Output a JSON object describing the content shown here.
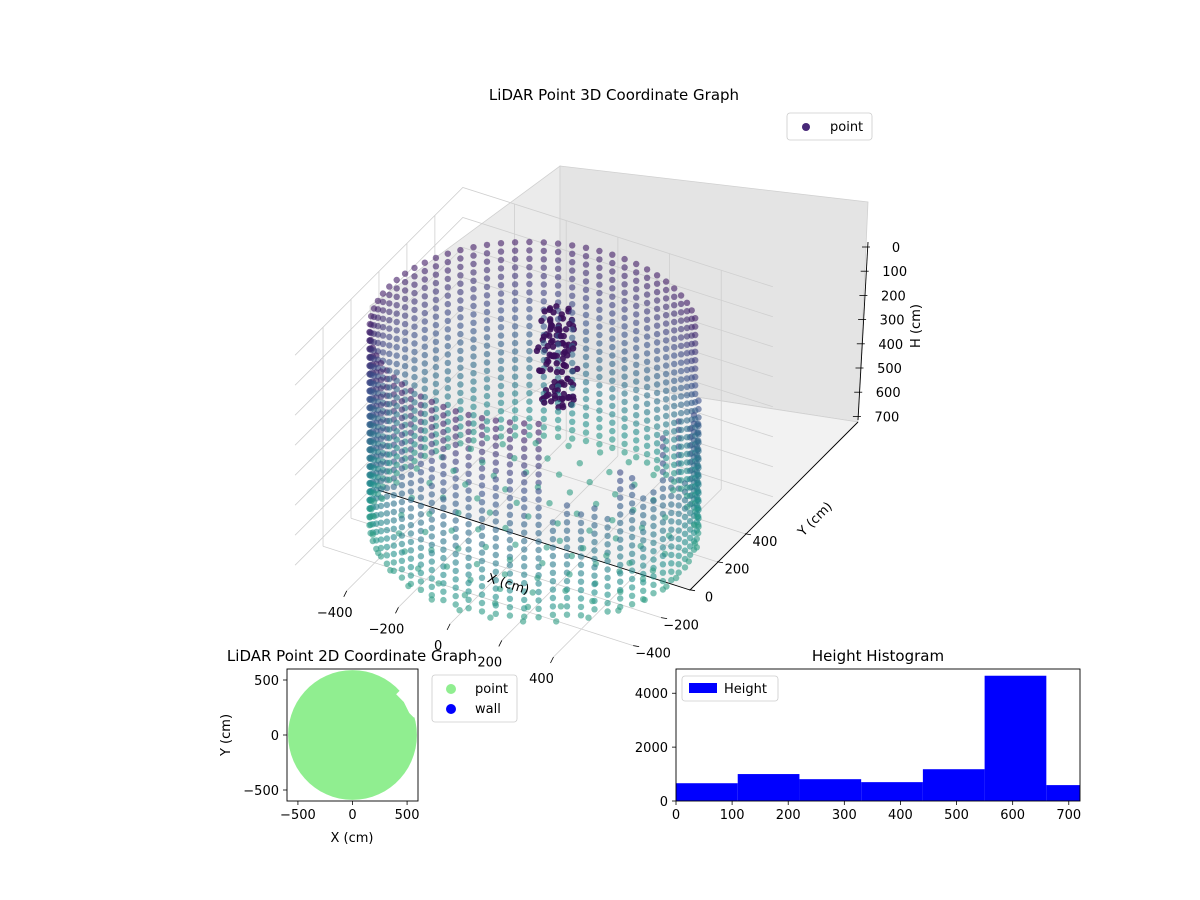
{
  "chart_data": [
    {
      "type": "scatter",
      "projection": "3d",
      "title": "LiDAR Point 3D Coordinate Graph",
      "xlabel": "X (cm)",
      "ylabel": "Y (cm)",
      "zlabel": "H (cm)",
      "xlim": [
        -600,
        600
      ],
      "ylim": [
        -600,
        600
      ],
      "zlim": [
        700,
        0
      ],
      "z_axis_inverted": true,
      "xticks": [
        "−400",
        "−200",
        "0",
        "200",
        "400"
      ],
      "yticks": [
        "−400",
        "−200",
        "0",
        "200",
        "400"
      ],
      "zticks": [
        "0",
        "100",
        "200",
        "300",
        "400",
        "500",
        "600",
        "700"
      ],
      "grid": true,
      "legend": {
        "placement": "top-right",
        "entries": [
          "point"
        ]
      },
      "colormap": "viridis",
      "series": [
        {
          "name": "point",
          "shape": "cylindrical wall with floor and a person near the center",
          "wall_radius": 560,
          "height_range": [
            0,
            700
          ],
          "color": "#482878"
        }
      ]
    },
    {
      "type": "scatter",
      "title": "LiDAR Point 2D Coordinate Graph",
      "xlabel": "X (cm)",
      "ylabel": "Y (cm)",
      "xlim": [
        -600,
        600
      ],
      "ylim": [
        -600,
        600
      ],
      "xticks": [
        "−500",
        "0",
        "500"
      ],
      "yticks": [
        "−500",
        "0",
        "500"
      ],
      "legend": {
        "placement": "outside-right",
        "entries": [
          "point",
          "wall"
        ]
      },
      "series": [
        {
          "name": "point",
          "color": "#90ee90"
        },
        {
          "name": "wall",
          "color": "#0000ff"
        }
      ]
    },
    {
      "type": "bar",
      "title": "Height Histogram",
      "xlim": [
        0,
        720
      ],
      "ylim": [
        0,
        4900
      ],
      "xticks": [
        "0",
        "100",
        "200",
        "300",
        "400",
        "500",
        "600",
        "700"
      ],
      "yticks": [
        "0",
        "2000",
        "4000"
      ],
      "legend": {
        "placement": "top-left",
        "entries": [
          "Height"
        ]
      },
      "bin_edges": [
        0,
        110,
        220,
        330,
        440,
        550,
        660,
        720
      ],
      "series": [
        {
          "name": "Height",
          "color": "#0000ff",
          "values": [
            660,
            1000,
            810,
            700,
            1180,
            4650,
            590
          ]
        }
      ]
    }
  ]
}
